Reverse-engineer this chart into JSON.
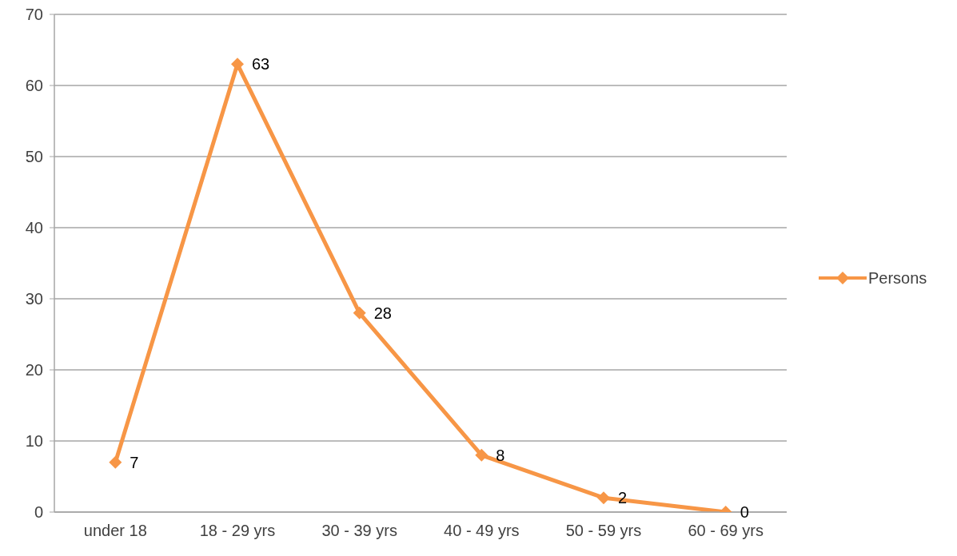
{
  "chart_data": {
    "type": "line",
    "categories": [
      "under 18",
      "18 - 29 yrs",
      "30 - 39 yrs",
      "40 - 49 yrs",
      "50 - 59 yrs",
      "60 - 69 yrs"
    ],
    "series": [
      {
        "name": "Persons",
        "color": "#f79646",
        "values": [
          7,
          63,
          28,
          8,
          2,
          0
        ]
      }
    ],
    "ylim": [
      0,
      70
    ],
    "yticks": [
      0,
      10,
      20,
      30,
      40,
      50,
      60,
      70
    ],
    "grid": "y",
    "legend": "right",
    "marker": "diamond",
    "line_style": "solid",
    "data_labels": true
  }
}
